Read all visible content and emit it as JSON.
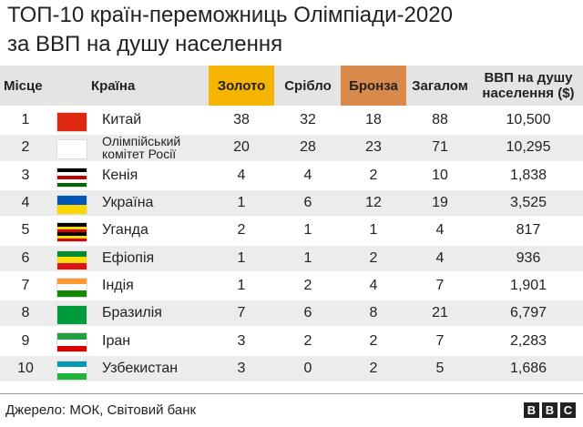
{
  "header": {
    "title": [
      "ТОП-10 країн-переможниць Олімпіади-2020",
      "за ВВП на душу населення"
    ]
  },
  "table": {
    "columns": [
      "Місце",
      "Країна",
      "Золото",
      "Срібло",
      "Бронза",
      "Загалом",
      [
        "ВВП на душу",
        "населення ($)"
      ]
    ],
    "rows": [
      [
        "1",
        [
          "Китай"
        ],
        "38",
        "32",
        "18",
        "88",
        "10,500"
      ],
      [
        "2",
        [
          "Олімпійський",
          "комітет Росії"
        ],
        "20",
        "28",
        "23",
        "71",
        "10,295"
      ],
      [
        "3",
        [
          "Кенія"
        ],
        "4",
        "4",
        "2",
        "10",
        "1,838"
      ],
      [
        "4",
        [
          "Україна"
        ],
        "1",
        "6",
        "12",
        "19",
        "3,525"
      ],
      [
        "5",
        [
          "Уганда"
        ],
        "2",
        "1",
        "1",
        "4",
        "817"
      ],
      [
        "6",
        [
          "Ефіопія"
        ],
        "1",
        "1",
        "2",
        "4",
        "936"
      ],
      [
        "7",
        [
          "Індія"
        ],
        "1",
        "2",
        "4",
        "7",
        "1,901"
      ],
      [
        "8",
        [
          "Бразилія"
        ],
        "7",
        "6",
        "8",
        "21",
        "6,797"
      ],
      [
        "9",
        [
          "Іран"
        ],
        "3",
        "2",
        "2",
        "7",
        "2,283"
      ],
      [
        "10",
        [
          "Узбекистан"
        ],
        "3",
        "0",
        "2",
        "5",
        "1,686"
      ]
    ]
  },
  "footer": {
    "source": "Джерело: МОК, Світовий банк",
    "logo": [
      "B",
      "B",
      "C"
    ]
  }
}
